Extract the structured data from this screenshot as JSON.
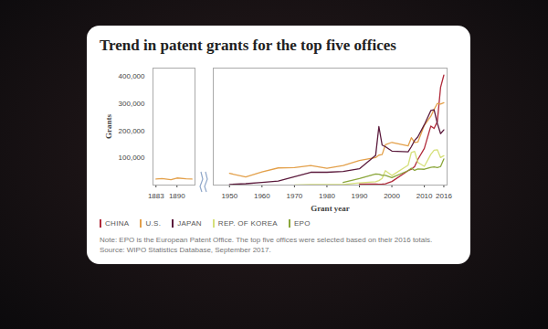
{
  "title": "Trend in patent grants for the top five offices",
  "note": "Note: EPO is the European Patent Office. The top five offices were selected based on their 2016 totals.",
  "source": "Source: WIPO Statistics Database, September 2017.",
  "chart_data": [
    {
      "type": "line",
      "y_label": "Grants",
      "x": [
        1883,
        1885,
        1888,
        1890,
        1893,
        1895
      ],
      "series": [
        {
          "name": "U.S.",
          "color": "#e3a04a",
          "values": [
            22000,
            24000,
            20000,
            26000,
            23000,
            22000
          ]
        }
      ],
      "xlim": [
        1882,
        1896
      ],
      "xticks": [
        1883,
        1890
      ],
      "ylim": [
        0,
        430000
      ],
      "yticks": [
        {
          "value": 100000,
          "label": "100,000"
        },
        {
          "value": 200000,
          "label": "200,000"
        },
        {
          "value": 300000,
          "label": "300,000"
        },
        {
          "value": 400000,
          "label": "400,000"
        }
      ]
    },
    {
      "type": "line",
      "x_label": "Grant year",
      "x": [
        1950,
        1955,
        1960,
        1965,
        1970,
        1975,
        1980,
        1985,
        1990,
        1995,
        1996,
        1997,
        1998,
        2000,
        2005,
        2006,
        2007,
        2008,
        2010,
        2012,
        2013,
        2014,
        2015,
        2016
      ],
      "series": [
        {
          "name": "CHINA",
          "color": "#b02a3a",
          "values": [
            null,
            null,
            null,
            null,
            null,
            null,
            null,
            null,
            4000,
            3400,
            2900,
            3500,
            4700,
            13000,
            53000,
            58000,
            68000,
            94000,
            135000,
            217000,
            208000,
            233000,
            359000,
            404000
          ]
        },
        {
          "name": "U.S.",
          "color": "#e3a04a",
          "values": [
            43000,
            30000,
            48000,
            63000,
            64000,
            72000,
            62000,
            72000,
            90000,
            101000,
            110000,
            112000,
            148000,
            157000,
            144000,
            174000,
            157000,
            158000,
            220000,
            253000,
            278000,
            300000,
            298000,
            303000
          ]
        },
        {
          "name": "JAPAN",
          "color": "#5b1a3c",
          "values": [
            2000,
            5000,
            10000,
            15000,
            31000,
            47000,
            47000,
            50000,
            60000,
            109000,
            215000,
            147000,
            141000,
            125000,
            122000,
            141000,
            164000,
            177000,
            222000,
            274000,
            277000,
            227000,
            189000,
            203000
          ]
        },
        {
          "name": "REP. OF KOREA",
          "color": "#d6e07a",
          "values": [
            null,
            null,
            null,
            null,
            200,
            2000,
            1600,
            2300,
            7800,
            12500,
            16500,
            24600,
            52900,
            35000,
            73000,
            120000,
            124000,
            83000,
            69000,
            113000,
            128000,
            130000,
            101000,
            108000
          ]
        },
        {
          "name": "EPO",
          "color": "#8aa63a",
          "values": [
            null,
            null,
            null,
            null,
            null,
            null,
            null,
            10000,
            24000,
            41000,
            40000,
            36000,
            36000,
            27000,
            53000,
            62000,
            54000,
            59000,
            58000,
            65000,
            67000,
            64000,
            68000,
            96000
          ]
        }
      ],
      "xlim": [
        1945,
        2017
      ],
      "xticks": [
        1950,
        1960,
        1970,
        1980,
        1990,
        2000,
        2010,
        2016
      ],
      "ylim": [
        0,
        430000
      ],
      "tick_labels": "x",
      "legend": "bottom"
    }
  ]
}
